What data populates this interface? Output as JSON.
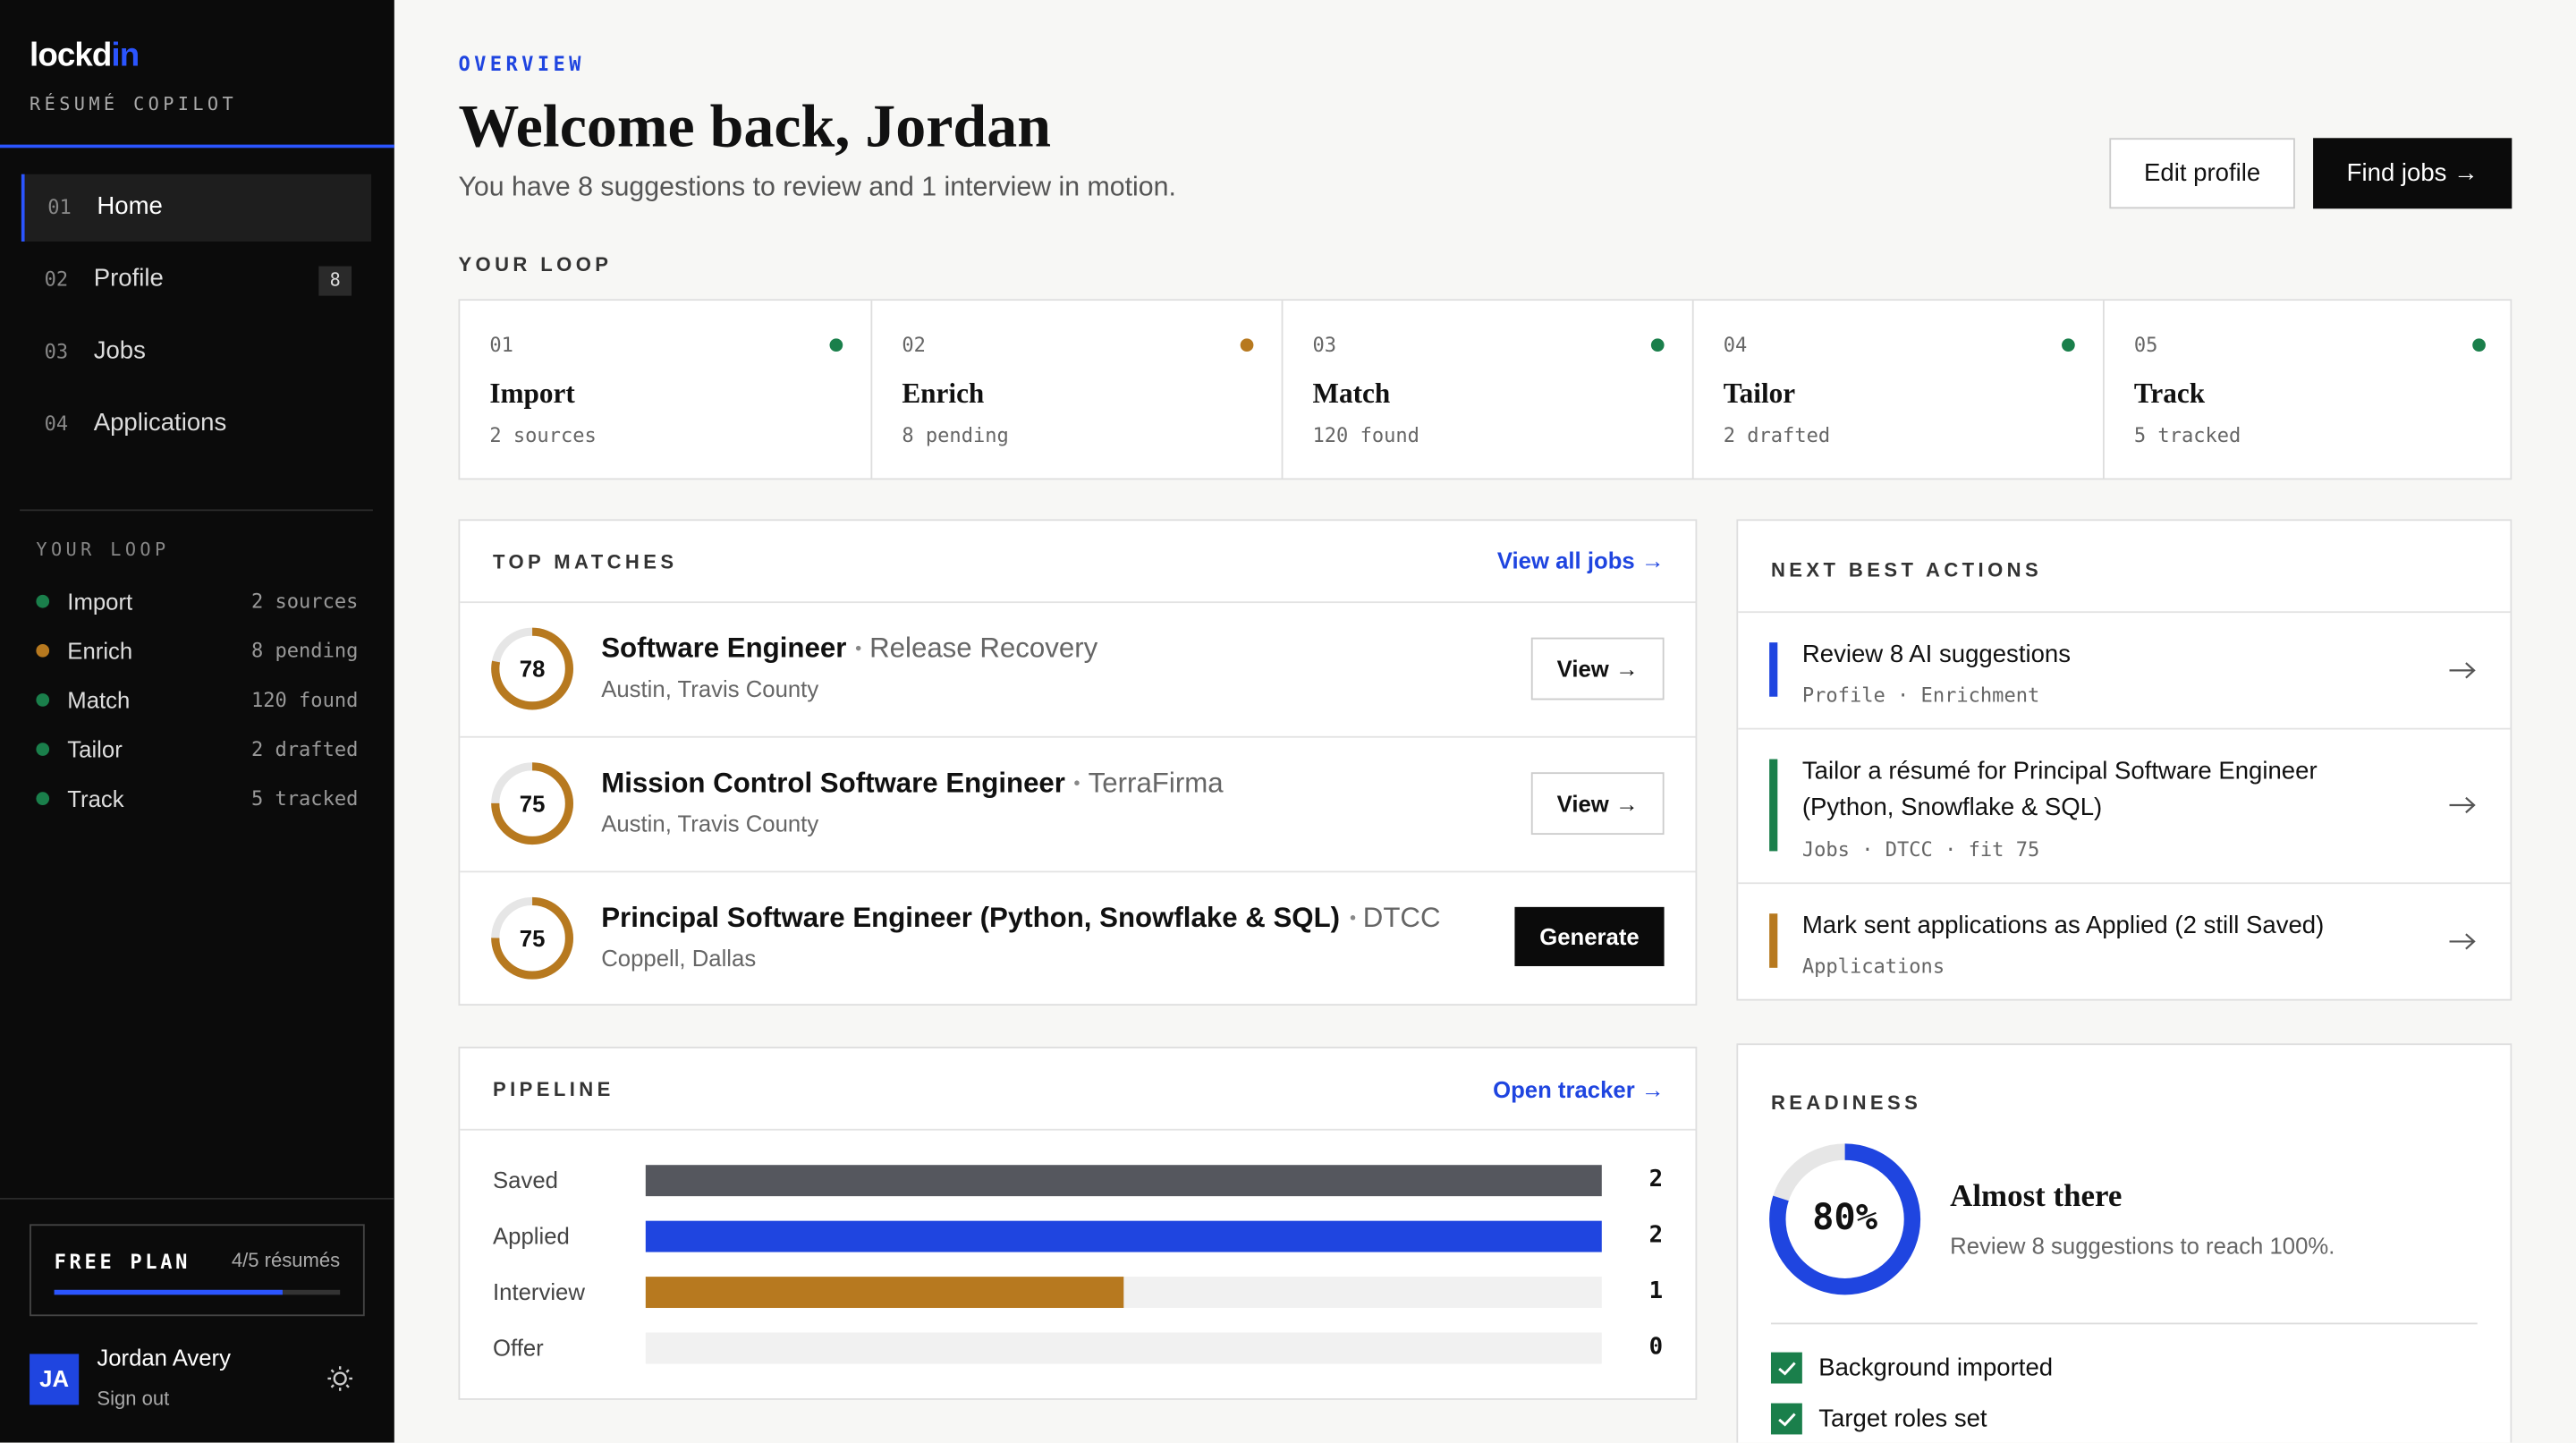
{
  "sidebar": {
    "brand_prefix": "lockd",
    "brand_suffix": "in",
    "tagline": "RÉSUMÉ COPILOT",
    "nav": [
      {
        "num": "01",
        "label": "Home",
        "active": true
      },
      {
        "num": "02",
        "label": "Profile",
        "badge": "8"
      },
      {
        "num": "03",
        "label": "Jobs"
      },
      {
        "num": "04",
        "label": "Applications"
      }
    ],
    "plan": {
      "label": "FREE PLAN",
      "usage": "4/5 résumés",
      "used": 4,
      "limit": 5
    },
    "user": {
      "initials": "JA",
      "name": "Jordan Avery",
      "action": "Sign out"
    }
  },
  "header": {
    "eyebrow": "OVERVIEW",
    "title": "Welcome back, Jordan",
    "subtitle": "You have 8 suggestions to review and 1 interview in motion.",
    "buttons": [
      "Edit profile",
      "Find jobs →"
    ]
  },
  "loop": {
    "title": "YOUR LOOP",
    "steps": [
      {
        "num": "01",
        "name": "Import",
        "detail": "2 sources",
        "color": "#1a7f4b"
      },
      {
        "num": "02",
        "name": "Enrich",
        "detail": "8 pending",
        "color": "#b7791f"
      },
      {
        "num": "03",
        "name": "Match",
        "detail": "120 found",
        "color": "#1a7f4b"
      },
      {
        "num": "04",
        "name": "Tailor",
        "detail": "2 drafted",
        "color": "#1a7f4b"
      },
      {
        "num": "05",
        "name": "Track",
        "detail": "5 tracked",
        "color": "#1a7f4b"
      }
    ]
  },
  "top_matches": {
    "title": "TOP MATCHES",
    "link": "View all jobs →",
    "items": [
      {
        "score": 78,
        "title": "Software Engineer",
        "company": "Release Recovery",
        "location": "Austin, Travis County",
        "action": "View →",
        "primary": false
      },
      {
        "score": 75,
        "title": "Mission Control Software Engineer",
        "company": "TerraFirma",
        "location": "Austin, Travis County",
        "action": "View →",
        "primary": false
      },
      {
        "score": 75,
        "title": "Principal Software Engineer (Python, Snowflake & SQL)",
        "company": "DTCC",
        "location": "Coppell, Dallas",
        "action": "Generate",
        "primary": true
      }
    ]
  },
  "next_actions": {
    "title": "NEXT BEST ACTIONS",
    "items": [
      {
        "title": "Review 8 AI suggestions",
        "meta": "Profile · Enrichment",
        "color": "#1f45e0"
      },
      {
        "title": "Tailor a résumé for Principal Software Engineer (Python, Snowflake & SQL)",
        "meta": "Jobs · DTCC · fit 75",
        "color": "#1a7f4b"
      },
      {
        "title": "Mark sent applications as Applied (2 still Saved)",
        "meta": "Applications",
        "color": "#b7791f"
      }
    ]
  },
  "pipeline": {
    "title": "PIPELINE",
    "link": "Open tracker →",
    "stages": [
      {
        "label": "Saved",
        "value": 2,
        "color": "#55575e"
      },
      {
        "label": "Applied",
        "value": 2,
        "color": "#1f45e0"
      },
      {
        "label": "Interview",
        "value": 1,
        "color": "#b7791f"
      },
      {
        "label": "Offer",
        "value": 0,
        "color": "#c9c9c9"
      }
    ]
  },
  "readiness": {
    "title": "READINESS",
    "value": 80,
    "value_label": "80%",
    "headline": "Almost there",
    "note": "Review 8 suggestions to reach 100%.",
    "checks": [
      "Background imported",
      "Target roles set"
    ]
  }
}
